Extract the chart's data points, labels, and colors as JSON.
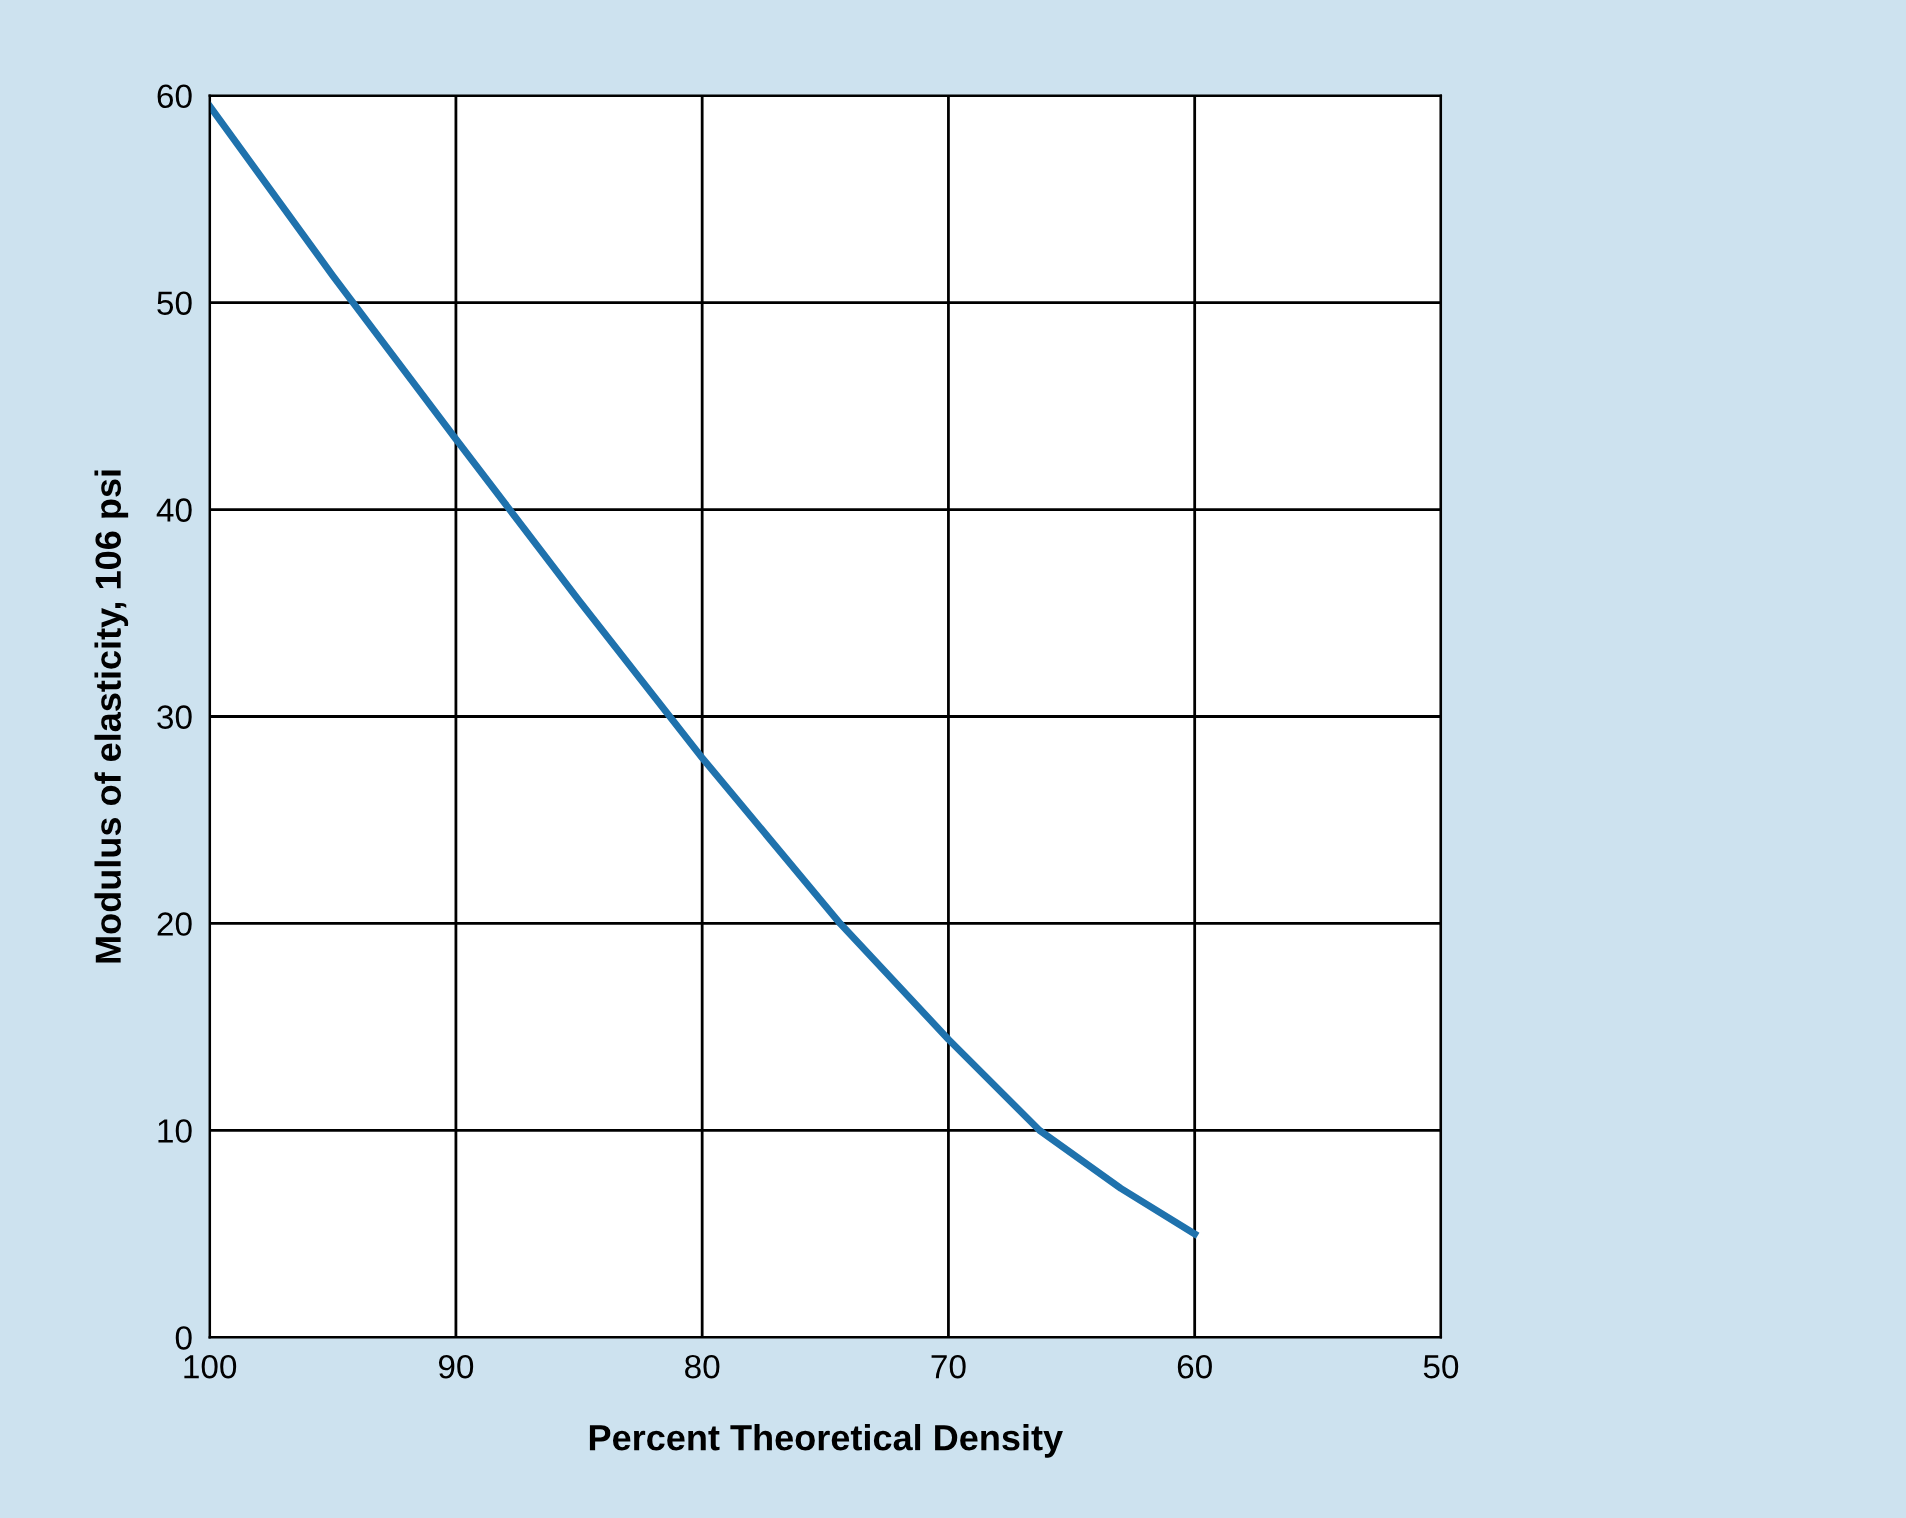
{
  "chart_data": {
    "type": "line",
    "xlabel": "Percent Theoretical Density",
    "ylabel": "Modulus of elasticity, 106 psi",
    "series": [
      {
        "color": "#1f72ad",
        "x": [
          100,
          95,
          90,
          85,
          80,
          74.4,
          70,
          66.3,
          63,
          60
        ],
        "values": [
          59.5,
          51.3,
          43.4,
          35.6,
          28,
          20,
          14.4,
          10,
          7.2,
          5
        ]
      }
    ],
    "xlim": [
      100,
      50
    ],
    "ylim": [
      0,
      60
    ],
    "xticks": [
      100,
      90,
      80,
      70,
      60,
      50
    ],
    "yticks": [
      0,
      10,
      20,
      30,
      40,
      50,
      60
    ],
    "grid": true,
    "marker": "none",
    "line_style": "solid"
  }
}
